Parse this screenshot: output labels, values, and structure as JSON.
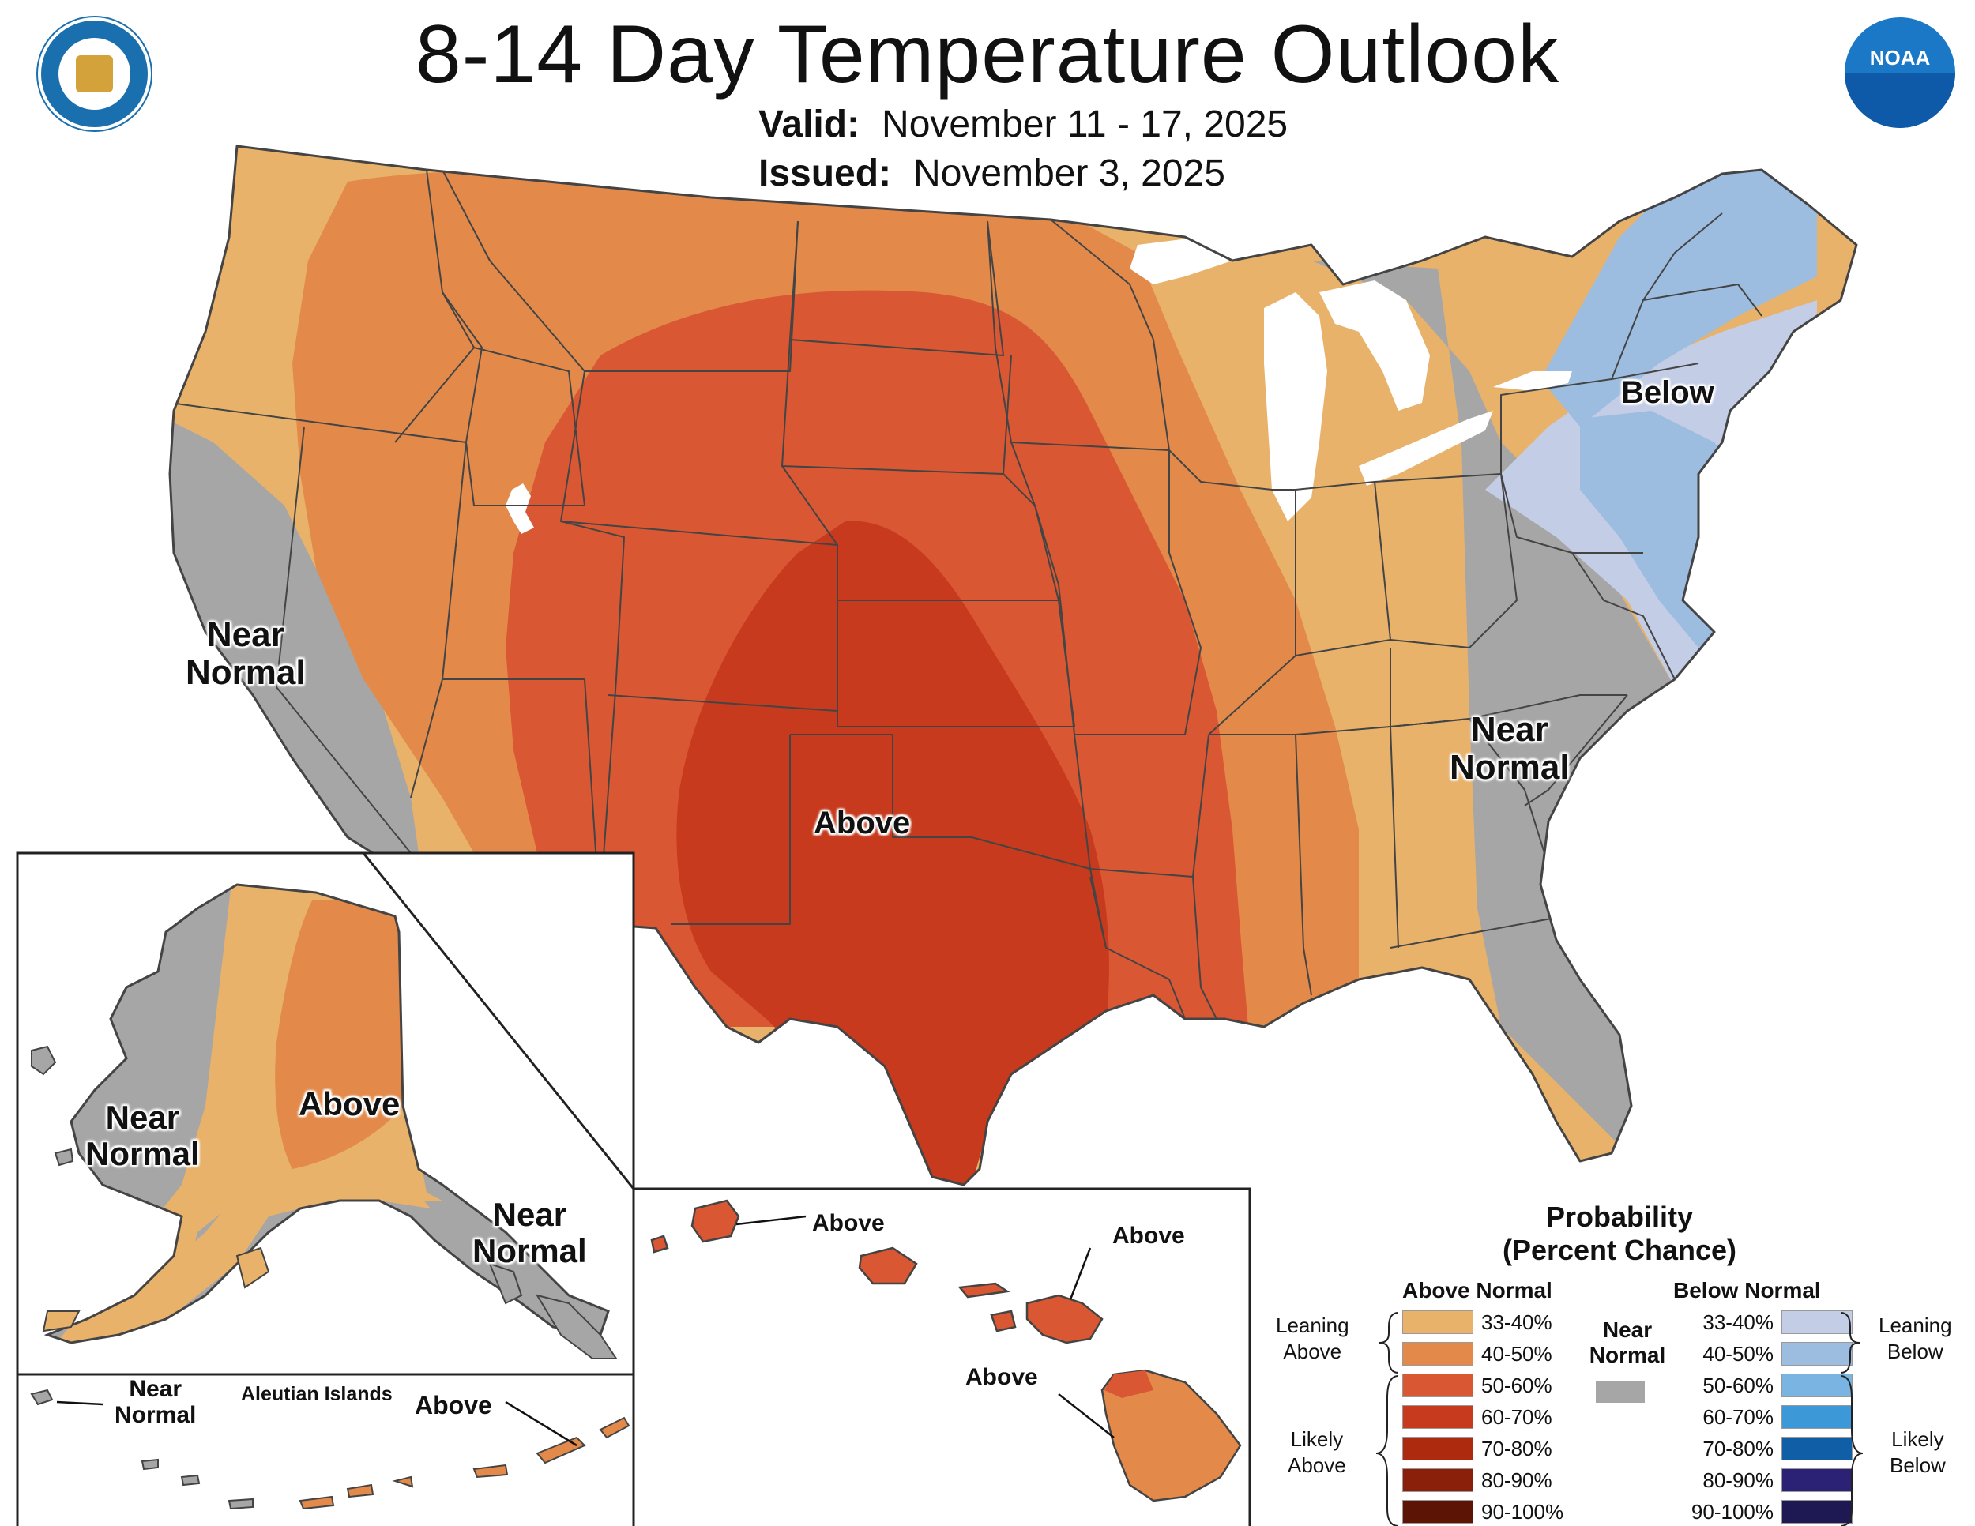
{
  "header": {
    "title": "8-14 Day Temperature Outlook",
    "valid_label": "Valid:",
    "valid_value": "November 11 - 17, 2025",
    "issued_label": "Issued:",
    "issued_value": "November 3, 2025"
  },
  "logos": {
    "commerce": "department-of-commerce-seal",
    "noaa_text": "NOAA"
  },
  "colors": {
    "near_normal": "#a6a6a6",
    "above_33_40": "#e8b26b",
    "above_40_50": "#e38a4a",
    "above_50_60": "#d95732",
    "above_60_70": "#c73a1d",
    "above_70_80": "#ad2a0e",
    "above_80_90": "#8a1f0a",
    "above_90_100": "#5c1405",
    "below_33_40": "#c3cde6",
    "below_40_50": "#9cbce0",
    "below_50_60": "#7ab4e2",
    "below_60_70": "#3d98d8",
    "below_70_80": "#0f5ea6",
    "below_80_90": "#2b2276",
    "below_90_100": "#1e1853"
  },
  "conus_labels": {
    "above": "Above",
    "below": "Below",
    "near_normal_west_1": "Near",
    "near_normal_west_2": "Normal",
    "near_normal_east_1": "Near",
    "near_normal_east_2": "Normal"
  },
  "alaska_labels": {
    "above": "Above",
    "near_normal_west_1": "Near",
    "near_normal_west_2": "Normal",
    "near_normal_se_1": "Near",
    "near_normal_se_2": "Normal"
  },
  "aleutian": {
    "title": "Aleutian Islands",
    "near_normal_1": "Near",
    "near_normal_2": "Normal",
    "above": "Above"
  },
  "hawaii_labels": {
    "kauai": "Above",
    "maui": "Above",
    "big_island": "Above"
  },
  "legend": {
    "title_1": "Probability",
    "title_2": "(Percent Chance)",
    "above_header": "Above Normal",
    "below_header": "Below Normal",
    "near_1": "Near",
    "near_2": "Normal",
    "leaning_above_1": "Leaning",
    "leaning_above_2": "Above",
    "likely_above_1": "Likely",
    "likely_above_2": "Above",
    "leaning_below_1": "Leaning",
    "leaning_below_2": "Below",
    "likely_below_1": "Likely",
    "likely_below_2": "Below",
    "above_rows": [
      {
        "label": "33-40%",
        "color": "#e8b26b"
      },
      {
        "label": "40-50%",
        "color": "#e38a4a"
      },
      {
        "label": "50-60%",
        "color": "#d95732"
      },
      {
        "label": "60-70%",
        "color": "#c73a1d"
      },
      {
        "label": "70-80%",
        "color": "#ad2a0e"
      },
      {
        "label": "80-90%",
        "color": "#8a1f0a"
      },
      {
        "label": "90-100%",
        "color": "#5c1405"
      }
    ],
    "below_rows": [
      {
        "label": "33-40%",
        "color": "#c3cde6"
      },
      {
        "label": "40-50%",
        "color": "#9cbce0"
      },
      {
        "label": "50-60%",
        "color": "#7ab4e2"
      },
      {
        "label": "60-70%",
        "color": "#3d98d8"
      },
      {
        "label": "70-80%",
        "color": "#0f5ea6"
      },
      {
        "label": "80-90%",
        "color": "#2b2276"
      },
      {
        "label": "90-100%",
        "color": "#1e1853"
      }
    ]
  }
}
